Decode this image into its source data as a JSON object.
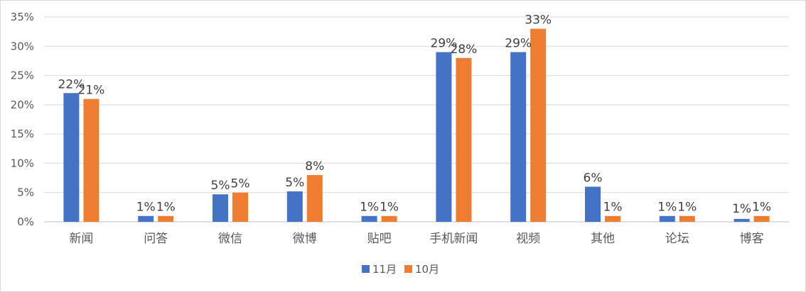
{
  "chart_data": {
    "type": "bar",
    "categories": [
      "新闻",
      "问答",
      "微信",
      "微博",
      "贴吧",
      "手机新闻",
      "视频",
      "其他",
      "论坛",
      "博客"
    ],
    "series": [
      {
        "name": "11月",
        "color": "#4472C4",
        "values": [
          0.22,
          0.01,
          0.047,
          0.052,
          0.01,
          0.29,
          0.29,
          0.06,
          0.01,
          0.005
        ],
        "labels": [
          "22%",
          "1%",
          "5%",
          "5%",
          "1%",
          "29%",
          "29%",
          "6%",
          "1%",
          "1%"
        ]
      },
      {
        "name": "10月",
        "color": "#ED7D31",
        "values": [
          0.21,
          0.01,
          0.05,
          0.08,
          0.01,
          0.28,
          0.33,
          0.01,
          0.01,
          0.01
        ],
        "labels": [
          "21%",
          "1%",
          "5%",
          "8%",
          "1%",
          "28%",
          "33%",
          "1%",
          "1%",
          "1%"
        ]
      }
    ],
    "ylim": [
      0,
      0.35
    ],
    "yticks": [
      0,
      0.05,
      0.1,
      0.15,
      0.2,
      0.25,
      0.3,
      0.35
    ],
    "ytick_labels": [
      "0%",
      "5%",
      "10%",
      "15%",
      "20%",
      "25%",
      "30%",
      "35%"
    ],
    "grid": true,
    "legend_position": "bottom"
  }
}
